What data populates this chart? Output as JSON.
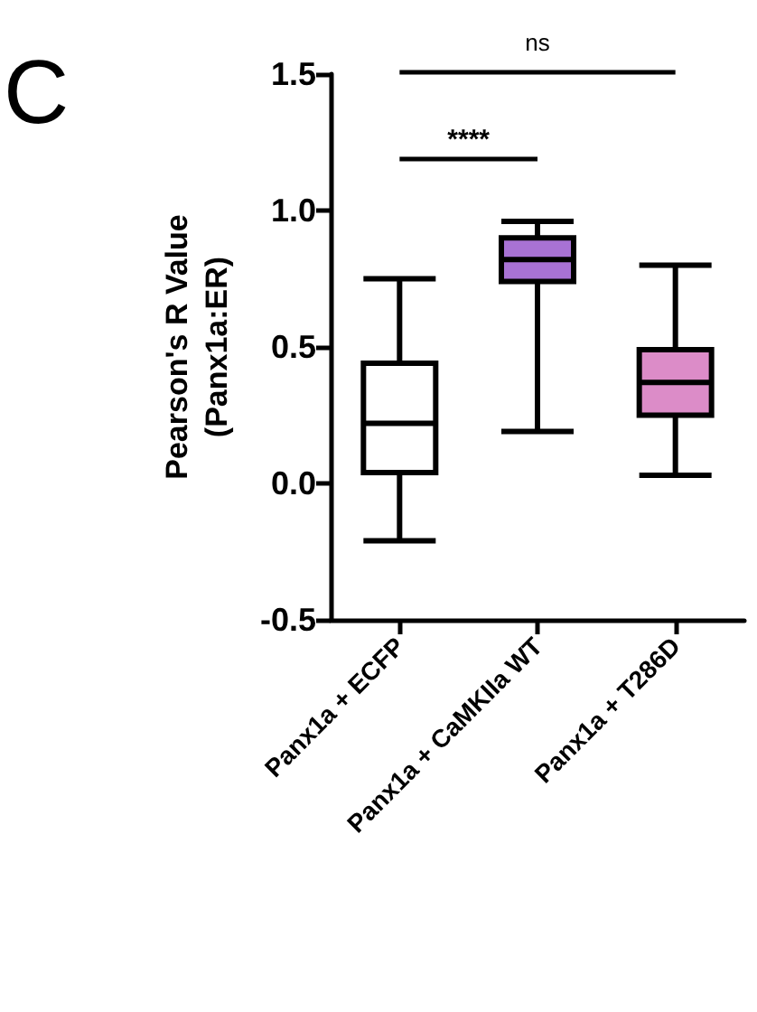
{
  "chart_data": {
    "type": "box",
    "ylabel": "Pearson's R Value\n(Panx1a:ER)",
    "categories": [
      "Panx1a + ECFP",
      "Panx1a + CaMKIIa WT",
      "Panx1a + T286D"
    ],
    "boxes": [
      {
        "low": -0.21,
        "q1": 0.04,
        "median": 0.22,
        "q3": 0.44,
        "high": 0.75
      },
      {
        "low": 0.19,
        "q1": 0.74,
        "median": 0.82,
        "q3": 0.9,
        "high": 0.96
      },
      {
        "low": 0.03,
        "q1": 0.25,
        "median": 0.37,
        "q3": 0.49,
        "high": 0.8
      }
    ],
    "colors": [
      "#ffffff",
      "#a872d4",
      "#dc8cc8"
    ],
    "ylim": [
      -0.5,
      1.5
    ],
    "yticks": [
      {
        "value": -0.5,
        "label": "-0.5"
      },
      {
        "value": 0,
        "label": "0.0"
      },
      {
        "value": 0.5,
        "label": "0.5"
      },
      {
        "value": 1,
        "label": "1.0"
      },
      {
        "value": 1.5,
        "label": "1.5"
      }
    ],
    "grid": false,
    "annotations": [
      "C",
      "****",
      "ns"
    ]
  }
}
